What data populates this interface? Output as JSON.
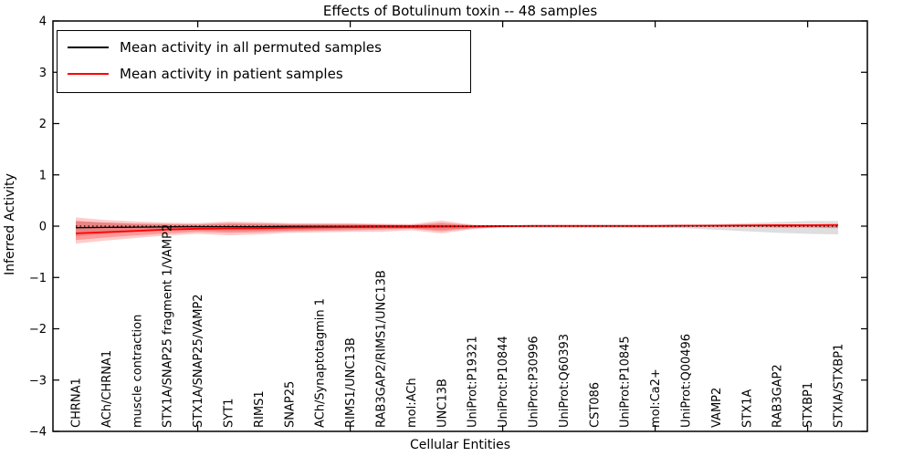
{
  "title": "Effects of Botulinum toxin -- 48 samples",
  "xlabel": "Cellular Entities",
  "ylabel": "Inferred Activity",
  "legend": {
    "position": "upper left",
    "items": [
      {
        "label": "Mean activity in all permuted samples",
        "color": "#000000"
      },
      {
        "label": "Mean activity in patient samples",
        "color": "#ff0000"
      }
    ]
  },
  "chart_data": {
    "type": "line",
    "title": "Effects of Botulinum toxin -- 48 samples",
    "xlabel": "Cellular Entities",
    "ylabel": "Inferred Activity",
    "ylim": [
      -4,
      4
    ],
    "yticks": [
      -4,
      -3,
      -2,
      -1,
      0,
      1,
      2,
      3,
      4
    ],
    "grid": false,
    "legend_position": "upper left",
    "x_major_tick_indices": [
      4,
      9,
      14,
      19,
      24
    ],
    "categories": [
      "CHRNA1",
      "ACh/CHRNA1",
      "muscle contraction",
      "STX1A/SNAP25 fragment 1/VAMP2",
      "STX1A/SNAP25/VAMP2",
      "SYT1",
      "RIMS1",
      "SNAP25",
      "ACh/Synaptotagmin 1",
      "RIMS1/UNC13B",
      "RAB3GAP2/RIMS1/UNC13B",
      "mol:ACh",
      "UNC13B",
      "UniProt:P19321",
      "UniProt:P10844",
      "UniProt:P30996",
      "UniProt:Q60393",
      "CST086",
      "UniProt:P10845",
      "mol:Ca2+",
      "UniProt:Q00496",
      "VAMP2",
      "STX1A",
      "RAB3GAP2",
      "STXBP1",
      "STXIA/STXBP1"
    ],
    "zero_line": {
      "value": 0,
      "style": "dotted",
      "color": "#000000"
    },
    "series": [
      {
        "name": "Mean activity in all permuted samples",
        "color": "#000000",
        "width": 1.3,
        "values": [
          -0.03,
          -0.025,
          -0.02,
          -0.015,
          -0.01,
          -0.01,
          -0.01,
          -0.005,
          -0.005,
          -0.005,
          0,
          0,
          0,
          0,
          0.005,
          0.005,
          0.005,
          0.005,
          0.005,
          0.005,
          0.01,
          0.01,
          0.015,
          0.015,
          0.02,
          0.02
        ]
      },
      {
        "name": "Mean activity in patient samples",
        "color": "#ff0000",
        "width": 1.8,
        "values": [
          -0.14,
          -0.115,
          -0.09,
          -0.065,
          -0.05,
          -0.045,
          -0.04,
          -0.03,
          -0.025,
          -0.02,
          -0.015,
          -0.015,
          -0.01,
          -0.005,
          0,
          0.005,
          0.005,
          0.005,
          0.005,
          0.005,
          0.01,
          0.01,
          0.015,
          0.02,
          0.02,
          0.025
        ]
      }
    ],
    "bands": [
      {
        "name": "permuted-samples-band",
        "color": "#000000",
        "opacity": 0.13,
        "upper": [
          0.1,
          0.07,
          0.05,
          0.04,
          0.04,
          0.06,
          0.05,
          0.04,
          0.04,
          0.04,
          0.03,
          0.03,
          0.05,
          0.02,
          0.01,
          0.01,
          0.01,
          0.01,
          0.01,
          0.01,
          0.02,
          0.04,
          0.06,
          0.08,
          0.1,
          0.1
        ],
        "lower": [
          -0.2,
          -0.15,
          -0.11,
          -0.08,
          -0.08,
          -0.1,
          -0.09,
          -0.08,
          -0.07,
          -0.06,
          -0.05,
          -0.05,
          -0.07,
          -0.04,
          -0.03,
          -0.03,
          -0.03,
          -0.03,
          -0.03,
          -0.03,
          -0.04,
          -0.07,
          -0.1,
          -0.13,
          -0.15,
          -0.16
        ]
      },
      {
        "name": "patient-samples-band-outer",
        "color": "#ff0000",
        "opacity": 0.2,
        "upper": [
          0.17,
          0.12,
          0.09,
          0.07,
          0.06,
          0.09,
          0.08,
          0.06,
          0.06,
          0.06,
          0.05,
          0.04,
          0.11,
          0.03,
          0.01,
          0.01,
          0.01,
          0.01,
          0.01,
          0.01,
          0.01,
          0.01,
          0.01,
          0.02,
          0.02,
          0.03
        ],
        "lower": [
          -0.34,
          -0.28,
          -0.23,
          -0.18,
          -0.15,
          -0.18,
          -0.16,
          -0.13,
          -0.12,
          -0.11,
          -0.11,
          -0.08,
          -0.14,
          -0.06,
          -0.02,
          -0.02,
          -0.02,
          -0.02,
          -0.02,
          -0.02,
          -0.02,
          -0.02,
          -0.02,
          -0.03,
          -0.03,
          -0.04
        ]
      },
      {
        "name": "patient-samples-band-inner",
        "color": "#ff0000",
        "opacity": 0.25,
        "upper": [
          0.1,
          0.07,
          0.05,
          0.04,
          0.03,
          0.05,
          0.05,
          0.04,
          0.04,
          0.04,
          0.03,
          0.02,
          0.07,
          0.02,
          0.005,
          0.005,
          0.005,
          0.005,
          0.005,
          0.005,
          0.005,
          0.005,
          0.005,
          0.01,
          0.01,
          0.02
        ],
        "lower": [
          -0.27,
          -0.22,
          -0.18,
          -0.14,
          -0.11,
          -0.13,
          -0.12,
          -0.1,
          -0.09,
          -0.08,
          -0.07,
          -0.05,
          -0.1,
          -0.04,
          -0.01,
          -0.01,
          -0.01,
          -0.01,
          -0.01,
          -0.01,
          -0.01,
          -0.01,
          -0.01,
          -0.02,
          -0.02,
          -0.03
        ]
      }
    ]
  }
}
